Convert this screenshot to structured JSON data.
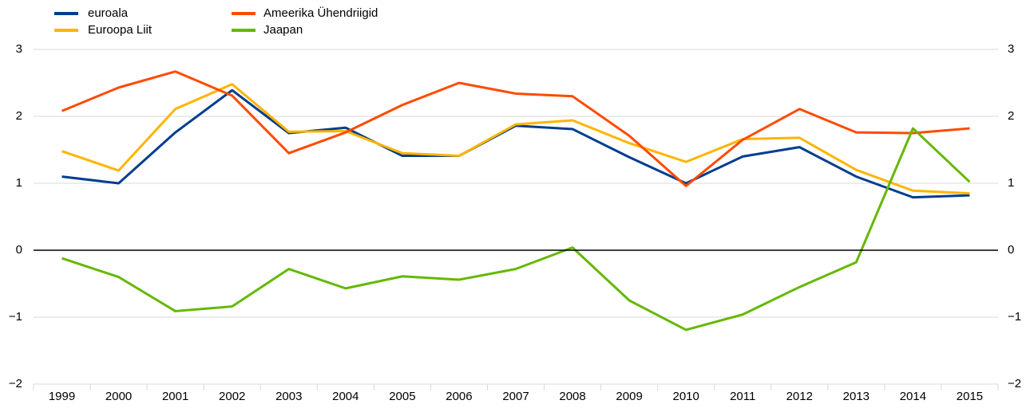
{
  "chart_data": {
    "type": "line",
    "categories": [
      "1999",
      "2000",
      "2001",
      "2002",
      "2003",
      "2004",
      "2005",
      "2006",
      "2007",
      "2008",
      "2009",
      "2010",
      "2011",
      "2012",
      "2013",
      "2014",
      "2015"
    ],
    "series": [
      {
        "name": "euroala",
        "color": "#003d8f",
        "values": [
          1.1,
          1.0,
          1.76,
          2.39,
          1.75,
          1.83,
          1.41,
          1.41,
          1.86,
          1.81,
          1.39,
          1.0,
          1.4,
          1.54,
          1.1,
          0.79,
          0.82
        ]
      },
      {
        "name": "Euroopa Liit",
        "color": "#ffb400",
        "values": [
          1.48,
          1.19,
          2.11,
          2.48,
          1.77,
          1.78,
          1.45,
          1.41,
          1.88,
          1.94,
          1.6,
          1.32,
          1.66,
          1.68,
          1.2,
          0.89,
          0.85
        ]
      },
      {
        "name": "Ameerika Ühendriigid",
        "color": "#ff4b00",
        "values": [
          2.08,
          2.43,
          2.67,
          2.31,
          1.45,
          1.76,
          2.17,
          2.5,
          2.34,
          2.3,
          1.71,
          0.96,
          1.65,
          2.11,
          1.76,
          1.75,
          1.82
        ]
      },
      {
        "name": "Jaapan",
        "color": "#65b800",
        "values": [
          -0.12,
          -0.4,
          -0.91,
          -0.84,
          -0.28,
          -0.57,
          -0.39,
          -0.44,
          -0.28,
          0.04,
          -0.75,
          -1.19,
          -0.96,
          -0.55,
          -0.18,
          1.82,
          1.02
        ]
      }
    ],
    "ylim": [
      -2,
      3
    ],
    "yticks": [
      {
        "value": -2,
        "label": "−2"
      },
      {
        "value": -1,
        "label": "−1"
      },
      0,
      1,
      2,
      3
    ],
    "y2lim": [
      -2,
      3
    ],
    "y2ticks": [
      {
        "value": -2,
        "label": "−2"
      },
      {
        "value": -1,
        "label": "−1"
      },
      0,
      1,
      2,
      3
    ],
    "grid": true,
    "legend": "top-left"
  }
}
